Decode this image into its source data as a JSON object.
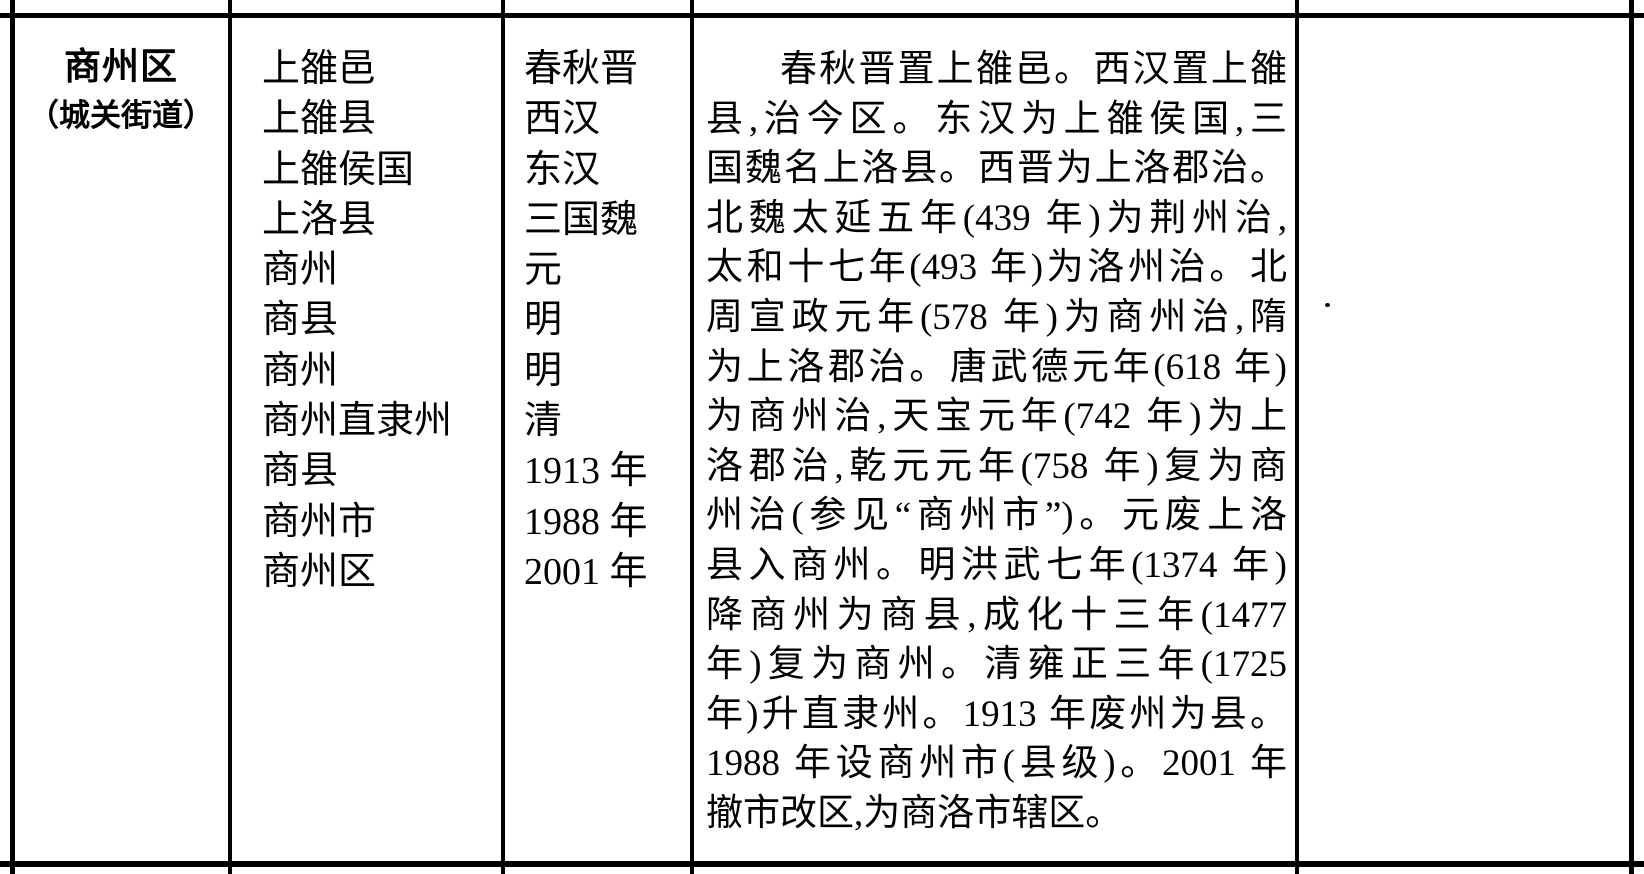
{
  "page": {
    "ink_color": "#000000",
    "paper_color": "#ffffff"
  },
  "table": {
    "entry": {
      "name": "商州区",
      "name_note": "（城关街道）",
      "historical_names": [
        "上雒邑",
        "上雒县",
        "上雒侯国",
        "上洛县",
        "商州",
        "商县",
        "商州",
        "商州直隶州",
        "商县",
        "商州市",
        "商州区"
      ],
      "periods": [
        "春秋晋",
        "西汉",
        "东汉",
        "三国魏",
        "元",
        "明",
        "明",
        "清",
        "1913 年",
        "1988 年",
        "2001 年"
      ],
      "description_lines": [
        "春秋晋置上雒邑。西汉置上雒",
        "县,治今区。东汉为上雒侯国,三",
        "国魏名上洛县。西晋为上洛郡治。",
        "北魏太延五年(439 年)为荆州治,",
        "太和十七年(493 年)为洛州治。北",
        "周宣政元年(578 年)为商州治,隋",
        "为上洛郡治。唐武德元年(618 年)",
        "为商州治,天宝元年(742 年)为上",
        "洛郡治,乾元元年(758 年)复为商",
        "州治(参见“商州市”)。元废上洛",
        "县入商州。明洪武七年(1374 年)",
        "降商州为商县,成化十三年(1477",
        "年)复为商州。清雍正三年(1725",
        "年)升直隶州。1913 年废州为县。",
        "1988 年设商州市(县级)。2001 年",
        "撤市改区,为商洛市辖区。"
      ]
    }
  }
}
